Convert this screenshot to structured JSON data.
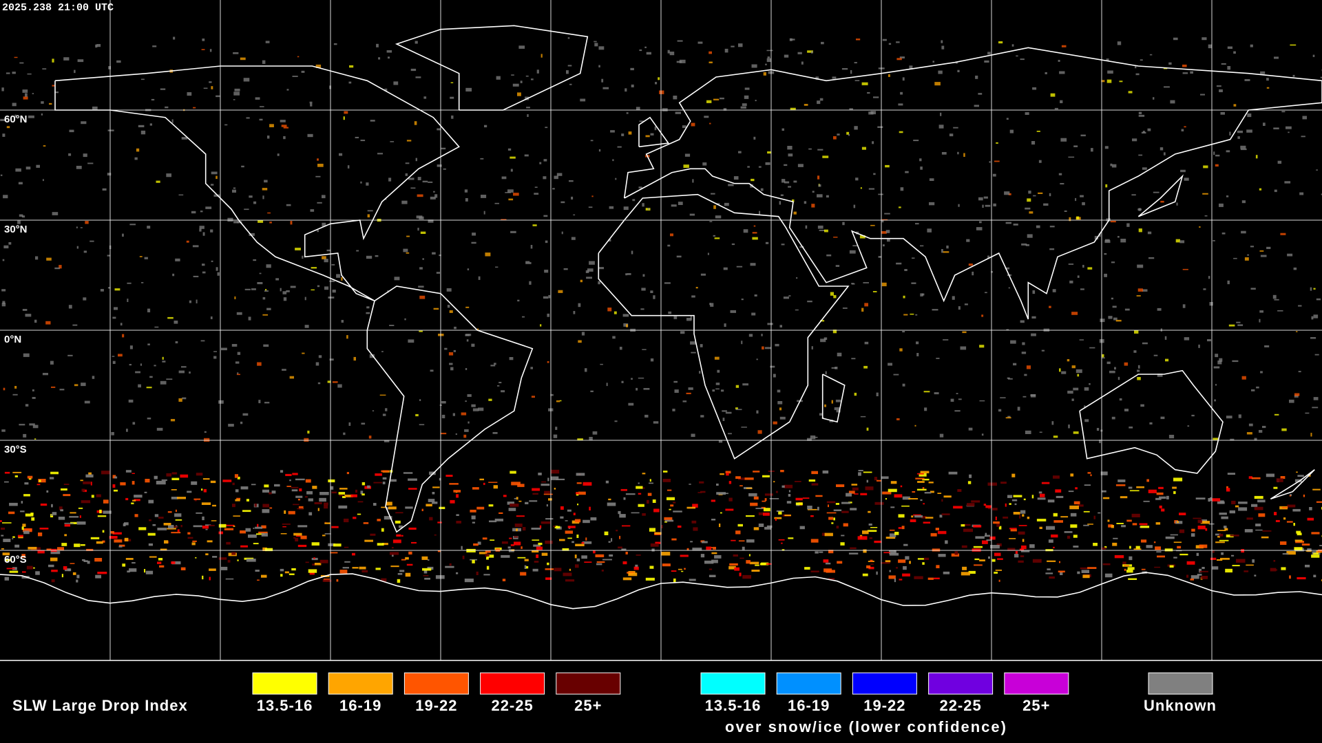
{
  "header": {
    "timestamp": "2025.238 21:00 UTC"
  },
  "map": {
    "latitude_labels": [
      "60°N",
      "30°N",
      "0°N",
      "30°S",
      "60°S"
    ]
  },
  "legend": {
    "title": "SLW Large Drop Index",
    "items": [
      {
        "label": "13.5-16",
        "color": "#ffff00"
      },
      {
        "label": "16-19",
        "color": "#ffa500"
      },
      {
        "label": "19-22",
        "color": "#ff5500"
      },
      {
        "label": "22-25",
        "color": "#ff0000"
      },
      {
        "label": "25+",
        "color": "#680000"
      }
    ],
    "ice_items": [
      {
        "label": "13.5-16",
        "color": "#00ffff"
      },
      {
        "label": "16-19",
        "color": "#0090ff"
      },
      {
        "label": "19-22",
        "color": "#0000ff"
      },
      {
        "label": "22-25",
        "color": "#7000e0"
      },
      {
        "label": "25+",
        "color": "#c800d8"
      }
    ],
    "ice_note": "over snow/ice (lower confidence)",
    "unknown": {
      "label": "Unknown",
      "color": "#808080"
    }
  }
}
